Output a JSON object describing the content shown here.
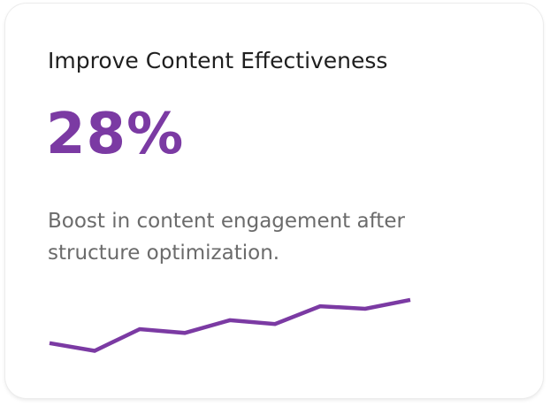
{
  "card": {
    "title": "Improve Content Effectiveness",
    "metric": "28%",
    "description": "Boost in content engagement after structure optimization."
  },
  "colors": {
    "accent": "#7b3aa3",
    "title_text": "#1f1f1f",
    "body_text": "#6b6b6b",
    "background": "#ffffff"
  },
  "chart_data": {
    "type": "line",
    "x": [
      1,
      2,
      3,
      4,
      5,
      6,
      7,
      8,
      9
    ],
    "series": [
      {
        "values": [
          14,
          8,
          25,
          22,
          32,
          29,
          43,
          41,
          48
        ]
      }
    ],
    "ylim": [
      0,
      50
    ],
    "grid": false,
    "legend": "none"
  }
}
